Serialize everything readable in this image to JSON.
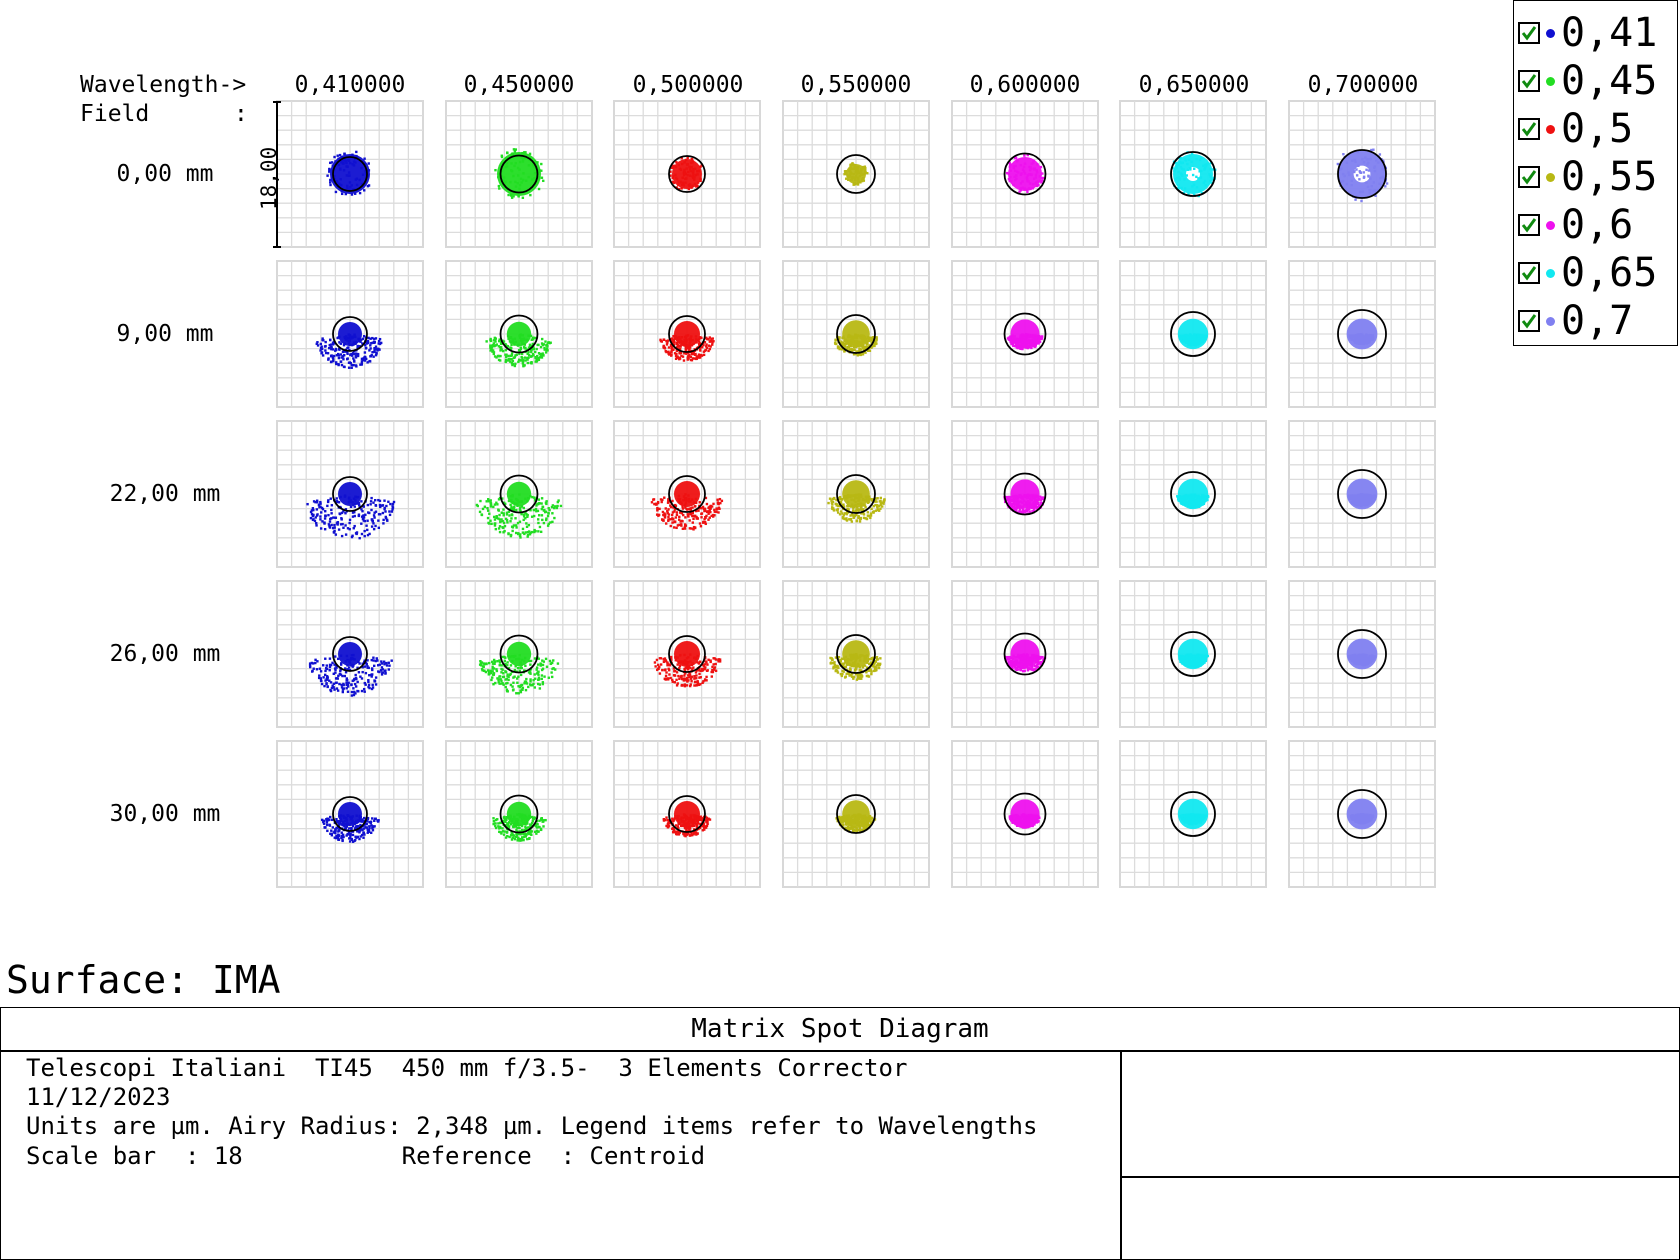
{
  "header": {
    "wavelength_label": "Wavelength->",
    "field_label": "Field",
    "field_colon": ":"
  },
  "wavelengths": [
    "0,410000",
    "0,450000",
    "0,500000",
    "0,550000",
    "0,600000",
    "0,650000",
    "0,700000"
  ],
  "fields": [
    "0,00 mm",
    "9,00 mm",
    "22,00 mm",
    "26,00 mm",
    "30,00 mm"
  ],
  "scale_bar_label": "18,00",
  "legend": {
    "items": [
      {
        "label": "0,41",
        "color": "#1010d0"
      },
      {
        "label": "0,45",
        "color": "#22dd22"
      },
      {
        "label": "0,5",
        "color": "#ee1111"
      },
      {
        "label": "0,55",
        "color": "#b8b814"
      },
      {
        "label": "0,6",
        "color": "#ee11ee"
      },
      {
        "label": "0,65",
        "color": "#11e8f0"
      },
      {
        "label": "0,7",
        "color": "#8080f0"
      }
    ]
  },
  "surface_label": "Surface: IMA",
  "info": {
    "title": "Matrix Spot Diagram",
    "line1": "Telescopi Italiani  TI45  450 mm f/3.5-  3 Elements Corrector",
    "line2": "11/12/2023",
    "line3": "Units are µm. Airy Radius: 2,348 µm. Legend items refer to Wavelengths",
    "line4": "Scale bar  : 18           Reference  : Centroid"
  }
}
